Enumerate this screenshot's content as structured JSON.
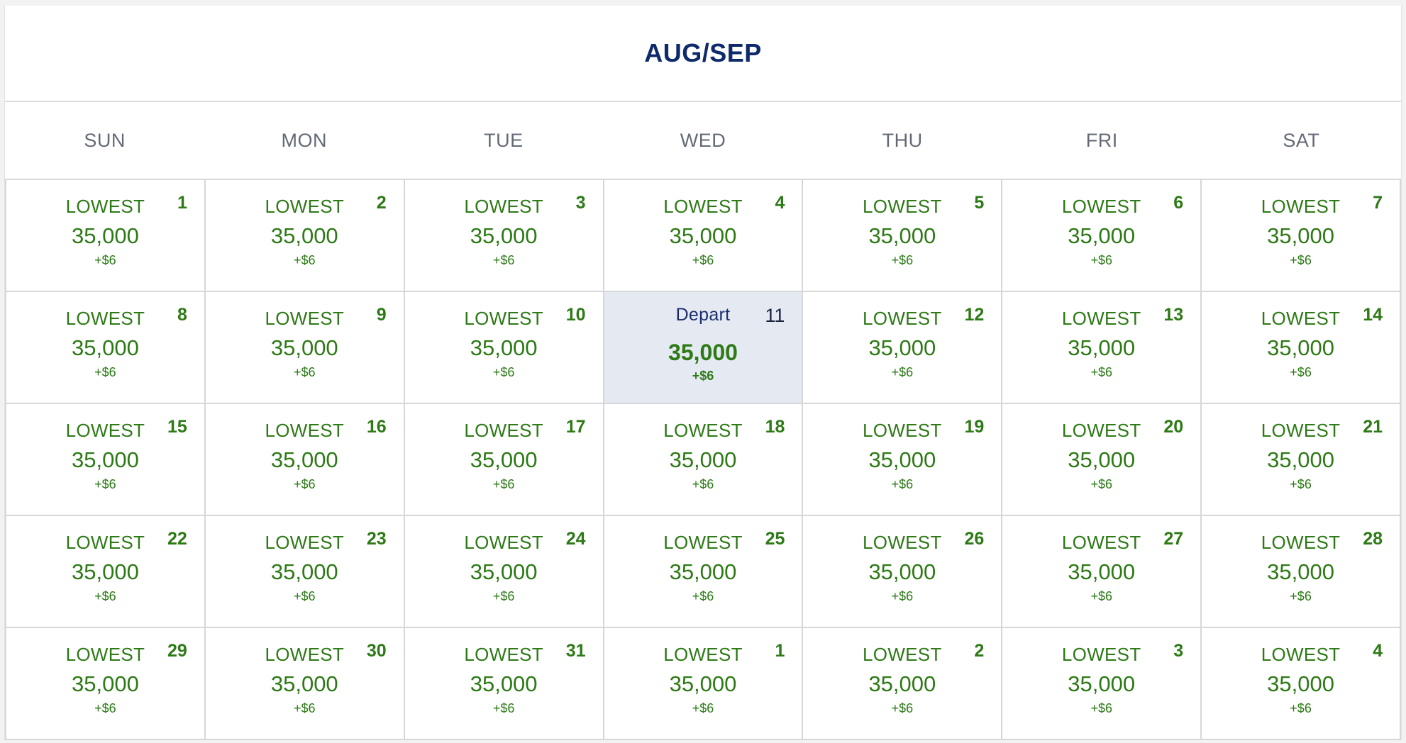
{
  "calendar": {
    "month_title": "AUG/SEP",
    "weekdays": [
      "SUN",
      "MON",
      "TUE",
      "WED",
      "THU",
      "FRI",
      "SAT"
    ],
    "colors": {
      "title": "#0e2a6b",
      "fare_green": "#2d7a16",
      "selected_bg": "#e5e9f2"
    },
    "days": [
      {
        "day": "1",
        "label": "LOWEST",
        "miles": "35,000",
        "fee": "+$6",
        "selected": false
      },
      {
        "day": "2",
        "label": "LOWEST",
        "miles": "35,000",
        "fee": "+$6",
        "selected": false
      },
      {
        "day": "3",
        "label": "LOWEST",
        "miles": "35,000",
        "fee": "+$6",
        "selected": false
      },
      {
        "day": "4",
        "label": "LOWEST",
        "miles": "35,000",
        "fee": "+$6",
        "selected": false
      },
      {
        "day": "5",
        "label": "LOWEST",
        "miles": "35,000",
        "fee": "+$6",
        "selected": false
      },
      {
        "day": "6",
        "label": "LOWEST",
        "miles": "35,000",
        "fee": "+$6",
        "selected": false
      },
      {
        "day": "7",
        "label": "LOWEST",
        "miles": "35,000",
        "fee": "+$6",
        "selected": false
      },
      {
        "day": "8",
        "label": "LOWEST",
        "miles": "35,000",
        "fee": "+$6",
        "selected": false
      },
      {
        "day": "9",
        "label": "LOWEST",
        "miles": "35,000",
        "fee": "+$6",
        "selected": false
      },
      {
        "day": "10",
        "label": "LOWEST",
        "miles": "35,000",
        "fee": "+$6",
        "selected": false
      },
      {
        "day": "11",
        "label": "Depart",
        "miles": "35,000",
        "fee": "+$6",
        "selected": true
      },
      {
        "day": "12",
        "label": "LOWEST",
        "miles": "35,000",
        "fee": "+$6",
        "selected": false
      },
      {
        "day": "13",
        "label": "LOWEST",
        "miles": "35,000",
        "fee": "+$6",
        "selected": false
      },
      {
        "day": "14",
        "label": "LOWEST",
        "miles": "35,000",
        "fee": "+$6",
        "selected": false
      },
      {
        "day": "15",
        "label": "LOWEST",
        "miles": "35,000",
        "fee": "+$6",
        "selected": false
      },
      {
        "day": "16",
        "label": "LOWEST",
        "miles": "35,000",
        "fee": "+$6",
        "selected": false
      },
      {
        "day": "17",
        "label": "LOWEST",
        "miles": "35,000",
        "fee": "+$6",
        "selected": false
      },
      {
        "day": "18",
        "label": "LOWEST",
        "miles": "35,000",
        "fee": "+$6",
        "selected": false
      },
      {
        "day": "19",
        "label": "LOWEST",
        "miles": "35,000",
        "fee": "+$6",
        "selected": false
      },
      {
        "day": "20",
        "label": "LOWEST",
        "miles": "35,000",
        "fee": "+$6",
        "selected": false
      },
      {
        "day": "21",
        "label": "LOWEST",
        "miles": "35,000",
        "fee": "+$6",
        "selected": false
      },
      {
        "day": "22",
        "label": "LOWEST",
        "miles": "35,000",
        "fee": "+$6",
        "selected": false
      },
      {
        "day": "23",
        "label": "LOWEST",
        "miles": "35,000",
        "fee": "+$6",
        "selected": false
      },
      {
        "day": "24",
        "label": "LOWEST",
        "miles": "35,000",
        "fee": "+$6",
        "selected": false
      },
      {
        "day": "25",
        "label": "LOWEST",
        "miles": "35,000",
        "fee": "+$6",
        "selected": false
      },
      {
        "day": "26",
        "label": "LOWEST",
        "miles": "35,000",
        "fee": "+$6",
        "selected": false
      },
      {
        "day": "27",
        "label": "LOWEST",
        "miles": "35,000",
        "fee": "+$6",
        "selected": false
      },
      {
        "day": "28",
        "label": "LOWEST",
        "miles": "35,000",
        "fee": "+$6",
        "selected": false
      },
      {
        "day": "29",
        "label": "LOWEST",
        "miles": "35,000",
        "fee": "+$6",
        "selected": false
      },
      {
        "day": "30",
        "label": "LOWEST",
        "miles": "35,000",
        "fee": "+$6",
        "selected": false
      },
      {
        "day": "31",
        "label": "LOWEST",
        "miles": "35,000",
        "fee": "+$6",
        "selected": false
      },
      {
        "day": "1",
        "label": "LOWEST",
        "miles": "35,000",
        "fee": "+$6",
        "selected": false
      },
      {
        "day": "2",
        "label": "LOWEST",
        "miles": "35,000",
        "fee": "+$6",
        "selected": false
      },
      {
        "day": "3",
        "label": "LOWEST",
        "miles": "35,000",
        "fee": "+$6",
        "selected": false
      },
      {
        "day": "4",
        "label": "LOWEST",
        "miles": "35,000",
        "fee": "+$6",
        "selected": false
      }
    ]
  }
}
